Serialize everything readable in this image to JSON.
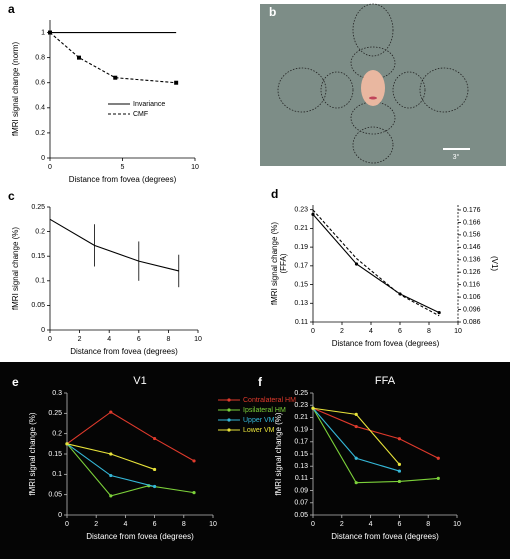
{
  "chart_data": [
    {
      "type": "line",
      "label": "a",
      "xlabel": "Distance from fovea (degrees)",
      "ylabel": [
        "fMRI signal change (norm)"
      ],
      "xlim": [
        0,
        10
      ],
      "xticks": [
        0,
        5,
        10
      ],
      "ylim": [
        0,
        1.1
      ],
      "yticks": [
        0,
        0.2,
        0.4,
        0.6,
        0.8,
        1
      ],
      "legend": "center right",
      "series": [
        {
          "name": "Invariance",
          "color": "#000000",
          "line_style": "solid",
          "x": [
            0,
            8.7
          ],
          "values": [
            1,
            1
          ]
        },
        {
          "name": "CMF",
          "color": "#000000",
          "line_style": "dashed",
          "marker": "square",
          "x": [
            0,
            2,
            4.5,
            8.7
          ],
          "values": [
            1,
            0.8,
            0.64,
            0.6
          ]
        }
      ]
    },
    {
      "type": "image",
      "label": "b",
      "scale_label": "3°"
    },
    {
      "type": "line",
      "label": "c",
      "xlabel": "Distance from fovea (degrees)",
      "ylabel": [
        "fMRI signal change (%)"
      ],
      "xlim": [
        0,
        10
      ],
      "xticks": [
        0,
        2,
        4,
        6,
        8,
        10
      ],
      "ylim": [
        0,
        0.25
      ],
      "yticks": [
        0,
        0.05,
        0.1,
        0.15,
        0.2,
        0.25
      ],
      "series": [
        {
          "color": "#000000",
          "line_style": "solid",
          "x": [
            0,
            3,
            6,
            8.7
          ],
          "values": [
            0.225,
            0.172,
            0.14,
            0.12
          ],
          "errors": [
            null,
            0.043,
            0.04,
            0.033
          ]
        }
      ]
    },
    {
      "type": "line",
      "label": "d",
      "xlabel": "Distance from fovea (degrees)",
      "ylabel": [
        "fMRI signal change (%)",
        "(FFA)"
      ],
      "y2label": "(V1)",
      "xlim": [
        0,
        10
      ],
      "xticks": [
        0,
        2,
        4,
        6,
        8,
        10
      ],
      "ylim": [
        0.11,
        0.235
      ],
      "yticks": [
        0.11,
        0.13,
        0.15,
        0.17,
        0.19,
        0.21,
        0.23
      ],
      "y2lim": [
        0.086,
        0.18
      ],
      "y2ticks": [
        0.086,
        0.096,
        0.106,
        0.116,
        0.126,
        0.136,
        0.146,
        0.156,
        0.166,
        0.176
      ],
      "series": [
        {
          "color": "#000000",
          "line_style": "solid",
          "marker": "circle",
          "x": [
            0,
            3,
            6,
            8.7
          ],
          "values": [
            0.225,
            0.172,
            0.14,
            0.12
          ]
        },
        {
          "color": "#000000",
          "line_style": "dashed",
          "axis": "y2",
          "x": [
            0,
            3,
            6,
            8.7
          ],
          "values": [
            0.176,
            0.137,
            0.108,
            0.091
          ]
        }
      ]
    },
    {
      "type": "line",
      "label": "e",
      "title": "V1",
      "theme": "dark",
      "xlabel": "Distance from fovea (degrees)",
      "ylabel": [
        "fMRI signal change (%)"
      ],
      "xlim": [
        0,
        10
      ],
      "xticks": [
        0,
        2,
        4,
        6,
        8,
        10
      ],
      "ylim": [
        0,
        0.3
      ],
      "yticks": [
        0,
        0.05,
        0.1,
        0.15,
        0.2,
        0.25,
        0.3
      ],
      "legend": "upper right",
      "series": [
        {
          "name": "Contralateral HM",
          "color": "#e03a2c",
          "marker": "circle",
          "x": [
            0,
            3,
            6,
            8.7
          ],
          "values": [
            0.175,
            0.253,
            0.188,
            0.133
          ]
        },
        {
          "name": "Ipsilateral HM",
          "color": "#7cd13a",
          "marker": "circle",
          "x": [
            0,
            3,
            5.6,
            8.7
          ],
          "values": [
            0.175,
            0.047,
            0.072,
            0.055
          ]
        },
        {
          "name": "Upper VM",
          "color": "#35b8d8",
          "marker": "circle",
          "x": [
            0,
            3,
            6
          ],
          "values": [
            0.175,
            0.097,
            0.07
          ]
        },
        {
          "name": "Lower VM",
          "color": "#e8e33a",
          "marker": "circle",
          "x": [
            0,
            3,
            6
          ],
          "values": [
            0.175,
            0.15,
            0.112
          ]
        }
      ]
    },
    {
      "type": "line",
      "label": "f",
      "title": "FFA",
      "theme": "dark",
      "xlabel": "Distance from fovea (degrees)",
      "ylabel": [
        "fMRI signal change (%)"
      ],
      "xlim": [
        0,
        10
      ],
      "xticks": [
        0,
        2,
        4,
        6,
        8,
        10
      ],
      "ylim": [
        0.05,
        0.25
      ],
      "yticks": [
        0.05,
        0.07,
        0.09,
        0.11,
        0.13,
        0.15,
        0.17,
        0.19,
        0.21,
        0.23,
        0.25
      ],
      "series": [
        {
          "color": "#e03a2c",
          "marker": "circle",
          "x": [
            0,
            3,
            6,
            8.7
          ],
          "values": [
            0.225,
            0.195,
            0.175,
            0.143
          ]
        },
        {
          "color": "#7cd13a",
          "marker": "circle",
          "x": [
            0,
            3,
            6,
            8.7
          ],
          "values": [
            0.225,
            0.103,
            0.105,
            0.11
          ]
        },
        {
          "color": "#35b8d8",
          "marker": "circle",
          "x": [
            0,
            3,
            6
          ],
          "values": [
            0.225,
            0.143,
            0.122
          ]
        },
        {
          "color": "#e8e33a",
          "marker": "circle",
          "x": [
            0,
            3,
            6
          ],
          "values": [
            0.225,
            0.215,
            0.133
          ]
        }
      ]
    }
  ]
}
